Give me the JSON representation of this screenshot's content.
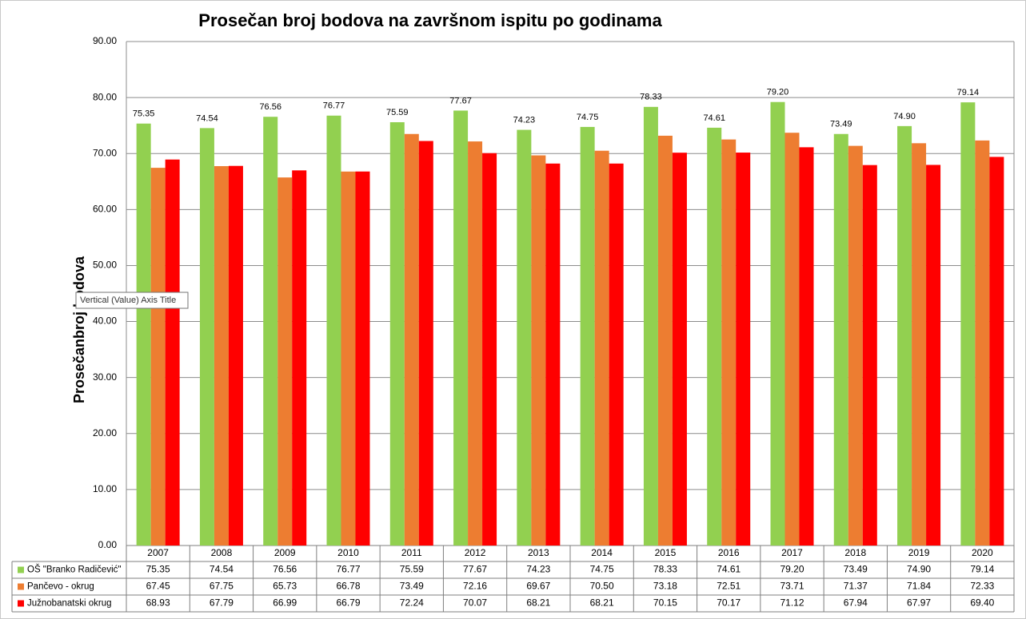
{
  "chart_data": {
    "type": "bar",
    "title": "Prosečan broj bodova na završnom ispitu po godinama",
    "y_label": "Prosečanbroj bodova",
    "tooltip": "Vertical (Value) Axis Title",
    "categories": [
      "2007",
      "2008",
      "2009",
      "2010",
      "2011",
      "2012",
      "2013",
      "2014",
      "2015",
      "2016",
      "2017",
      "2018",
      "2019",
      "2020"
    ],
    "series": [
      {
        "name": "OŠ \"Branko Radičević\"",
        "color": "#92d050",
        "show_labels": true,
        "values": [
          75.35,
          74.54,
          76.56,
          76.77,
          75.59,
          77.67,
          74.23,
          74.75,
          78.33,
          74.61,
          79.2,
          73.49,
          74.9,
          79.14
        ],
        "value_labels": [
          "75.35",
          "74.54",
          "76.56",
          "76.77",
          "75.59",
          "77.67",
          "74.23",
          "74.75",
          "78.33",
          "74.61",
          "79.20",
          "73.49",
          "74.90",
          "79.14"
        ]
      },
      {
        "name": "Pančevo - okrug",
        "color": "#ed7d31",
        "show_labels": false,
        "values": [
          67.45,
          67.75,
          65.73,
          66.78,
          73.49,
          72.16,
          69.67,
          70.5,
          73.18,
          72.51,
          73.71,
          71.37,
          71.84,
          72.33
        ],
        "value_labels": [
          "67.45",
          "67.75",
          "65.73",
          "66.78",
          "73.49",
          "72.16",
          "69.67",
          "70.50",
          "73.18",
          "72.51",
          "73.71",
          "71.37",
          "71.84",
          "72.33"
        ]
      },
      {
        "name": "Južnobanatski okrug",
        "color": "#ff0000",
        "show_labels": false,
        "values": [
          68.93,
          67.79,
          66.99,
          66.79,
          72.24,
          70.07,
          68.21,
          68.21,
          70.15,
          70.17,
          71.12,
          67.94,
          67.97,
          69.4
        ],
        "value_labels": [
          "68.93",
          "67.79",
          "66.99",
          "66.79",
          "72.24",
          "70.07",
          "68.21",
          "68.21",
          "70.15",
          "70.17",
          "71.12",
          "67.94",
          "67.97",
          "69.40"
        ]
      }
    ],
    "ylim": [
      0,
      90
    ],
    "yticks": [
      {
        "value": 0,
        "label": "0.00"
      },
      {
        "value": 10,
        "label": "10.00"
      },
      {
        "value": 20,
        "label": "20.00"
      },
      {
        "value": 30,
        "label": "30.00"
      },
      {
        "value": 40,
        "label": "40.00"
      },
      {
        "value": 50,
        "label": "50.00"
      },
      {
        "value": 60,
        "label": "60.00"
      },
      {
        "value": 70,
        "label": "70.00"
      },
      {
        "value": 80,
        "label": "80.00"
      },
      {
        "value": 90,
        "label": "90.00"
      }
    ],
    "grid": true
  }
}
